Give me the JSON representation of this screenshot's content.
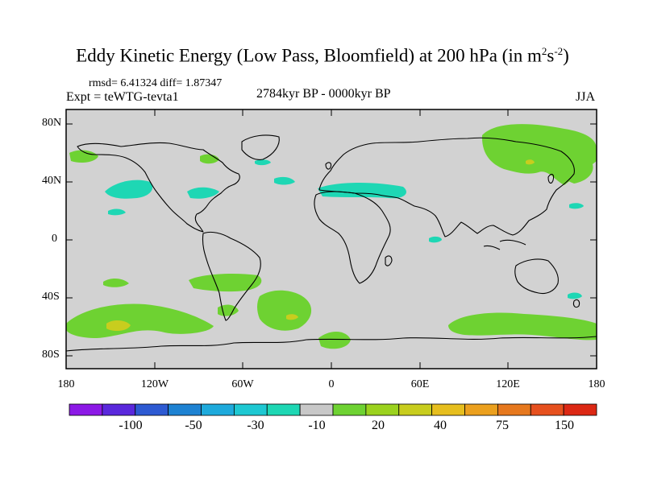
{
  "title": "Eddy Kinetic Energy (Low Pass, Bloomfield) at 200 hPa (in m",
  "title_unit_sup1": "2",
  "title_unit_mid": "s",
  "title_unit_sup2": "-2",
  "title_close": ")",
  "stats": "rmsd= 6.41324 diff= 1.87347",
  "experiment": "Expt = teWTG-tevta1",
  "period": "2784kyr BP - 0000kyr BP",
  "season": "JJA",
  "lat_labels": [
    "80N",
    "40N",
    "0",
    "40S",
    "80S"
  ],
  "lon_labels": [
    "180",
    "120W",
    "60W",
    "0",
    "60E",
    "120E",
    "180"
  ],
  "colorbar": {
    "colors": [
      "#8c19e6",
      "#5a28dc",
      "#2d5ad2",
      "#1e82d2",
      "#1eaadc",
      "#1ec8d2",
      "#1ed7b4",
      "#c8c8c8",
      "#6ed232",
      "#9bd21e",
      "#c8cd1e",
      "#e6be1e",
      "#eba01e",
      "#e6781e",
      "#e6501e",
      "#dc2814"
    ],
    "labels": [
      "-100",
      "-50",
      "-30",
      "-10",
      "20",
      "40",
      "75",
      "150"
    ]
  },
  "colors": {
    "land_background": "#d2d2d2",
    "positive_light": "#6ed232",
    "positive_mid": "#c8cd1e",
    "negative_light": "#1ed7b4"
  }
}
